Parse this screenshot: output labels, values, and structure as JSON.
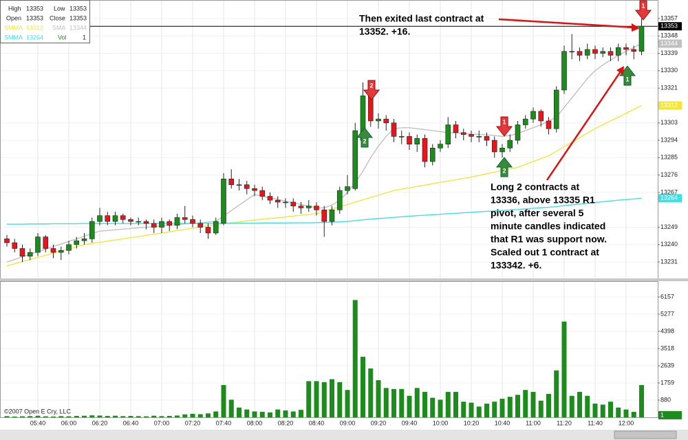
{
  "chart_data": {
    "type": "candlestick",
    "categories": [
      null,
      null,
      null,
      null,
      "05:40",
      null,
      null,
      null,
      "06:00",
      null,
      null,
      null,
      "06:20",
      null,
      null,
      null,
      "06:40",
      null,
      null,
      null,
      "07:00",
      null,
      null,
      null,
      "07:20",
      null,
      null,
      null,
      "07:40",
      null,
      null,
      null,
      "08:00",
      null,
      null,
      null,
      "08:20",
      null,
      null,
      null,
      "08:40",
      null,
      null,
      null,
      "09:00",
      null,
      null,
      null,
      "09:20",
      null,
      null,
      null,
      "09:40",
      null,
      null,
      null,
      "10:00",
      null,
      null,
      null,
      "10:20",
      null,
      null,
      null,
      "10:40",
      null,
      null,
      null,
      "11:00",
      null,
      null,
      null,
      "11:20",
      null,
      null,
      null,
      "11:40",
      null,
      null,
      null,
      "12:00",
      null,
      null
    ],
    "open": [
      13243,
      13241,
      13238,
      13234,
      13236,
      13244,
      13238,
      13236,
      13237,
      13240,
      13242,
      13243,
      13252,
      13255,
      13252,
      13255,
      13253,
      13252,
      13252,
      13251,
      13249,
      13252,
      13250,
      13254,
      13253,
      13251,
      13249,
      13246,
      13251,
      13274,
      13271,
      13271,
      13269,
      13268,
      13265,
      13263,
      13262,
      13262,
      13260,
      13259,
      13260,
      13258,
      13252,
      13258,
      13268,
      13269,
      13294,
      13318,
      13304,
      13305,
      13303,
      13296,
      13296,
      13292,
      13295,
      13283,
      13290,
      13292,
      13302,
      13298,
      13297,
      13296,
      13296,
      13294,
      13288,
      13290,
      13294,
      13302,
      13305,
      13309,
      13304,
      13300,
      13320,
      13340,
      13340,
      13338,
      13341,
      13339,
      13340,
      13338,
      13342,
      13341,
      13340
    ],
    "high": [
      13245,
      13243,
      13240,
      13238,
      13246,
      13245,
      13240,
      13239,
      13242,
      13244,
      13246,
      13254,
      13259,
      13257,
      13257,
      13256,
      13254,
      13254,
      13253,
      13253,
      13254,
      13253,
      13256,
      13260,
      13255,
      13253,
      13251,
      13254,
      13277,
      13279,
      13274,
      13273,
      13271,
      13270,
      13267,
      13265,
      13264,
      13264,
      13262,
      13263,
      13262,
      13260,
      13260,
      13270,
      13276,
      13303,
      13324,
      13320,
      13308,
      13307,
      13305,
      13299,
      13298,
      13297,
      13297,
      13292,
      13294,
      13306,
      13304,
      13300,
      13299,
      13299,
      13298,
      13296,
      13292,
      13297,
      13304,
      13307,
      13311,
      13310,
      13306,
      13322,
      13343,
      13349,
      13342,
      13344,
      13343,
      13342,
      13342,
      13344,
      13344,
      13343,
      13357
    ],
    "low": [
      13239,
      13236,
      13231,
      13232,
      13234,
      13236,
      13233,
      13232,
      13235,
      13238,
      13240,
      13241,
      13250,
      13250,
      13250,
      13251,
      13250,
      13250,
      13248,
      13246,
      13246,
      13247,
      13248,
      13251,
      13249,
      13246,
      13243,
      13245,
      13250,
      13269,
      13268,
      13266,
      13265,
      13263,
      13261,
      13259,
      13259,
      13257,
      13256,
      13257,
      13255,
      13244,
      13250,
      13256,
      13266,
      13268,
      13292,
      13301,
      13300,
      13299,
      13293,
      13292,
      13289,
      13288,
      13280,
      13281,
      13288,
      13290,
      13295,
      13294,
      13293,
      13293,
      13291,
      13285,
      13285,
      13288,
      13292,
      13300,
      13303,
      13301,
      13297,
      13298,
      13318,
      13336,
      13335,
      13336,
      13336,
      13337,
      13335,
      13335,
      13338,
      13336,
      13338
    ],
    "close": [
      13241,
      13238,
      13234,
      13236,
      13244,
      13238,
      13236,
      13237,
      13240,
      13242,
      13243,
      13252,
      13255,
      13252,
      13255,
      13253,
      13252,
      13252,
      13251,
      13249,
      13252,
      13250,
      13254,
      13253,
      13251,
      13249,
      13246,
      13252,
      13274,
      13271,
      13271,
      13269,
      13268,
      13265,
      13263,
      13262,
      13262,
      13260,
      13259,
      13260,
      13258,
      13252,
      13258,
      13268,
      13270,
      13299,
      13317,
      13304,
      13305,
      13303,
      13296,
      13296,
      13292,
      13295,
      13283,
      13290,
      13292,
      13302,
      13298,
      13297,
      13296,
      13296,
      13294,
      13288,
      13290,
      13294,
      13302,
      13305,
      13309,
      13304,
      13300,
      13320,
      13340,
      13340,
      13338,
      13341,
      13339,
      13340,
      13338,
      13342,
      13341,
      13340,
      13353
    ],
    "volume": [
      60,
      40,
      50,
      60,
      80,
      50,
      40,
      60,
      50,
      70,
      80,
      100,
      90,
      70,
      80,
      60,
      70,
      60,
      50,
      80,
      60,
      70,
      90,
      150,
      180,
      160,
      200,
      300,
      1650,
      900,
      500,
      400,
      300,
      280,
      250,
      400,
      350,
      300,
      380,
      1850,
      1850,
      1800,
      1950,
      1800,
      1400,
      6000,
      3100,
      2500,
      1900,
      1500,
      1450,
      1450,
      1100,
      1500,
      1300,
      1000,
      900,
      1300,
      1300,
      800,
      750,
      550,
      700,
      800,
      950,
      1050,
      1150,
      1400,
      1300,
      850,
      1200,
      2400,
      4900,
      1100,
      1300,
      1100,
      700,
      650,
      800,
      500,
      400,
      280,
      1650
    ],
    "series": [
      {
        "name": "SMMA",
        "color": "#f2e63a",
        "values": [
          13229,
          13230.1,
          13231.2,
          13232.3,
          13233.4,
          13234.5,
          13235.6,
          13236.7,
          13237.8,
          13238.9,
          13240,
          13240.6,
          13241.2,
          13241.8,
          13242.4,
          13243,
          13243.6,
          13244.2,
          13244.8,
          13245.4,
          13246,
          13246.6,
          13247.3,
          13247.9,
          13248.5,
          13249.1,
          13249.8,
          13250.4,
          13251,
          13251.4,
          13251.8,
          13252.3,
          13252.7,
          13253.1,
          13253.5,
          13253.9,
          13254.3,
          13254.8,
          13255.2,
          13255.6,
          13256,
          13257.2,
          13258.4,
          13259.6,
          13260.8,
          13262,
          13263.2,
          13264.4,
          13265.6,
          13266.8,
          13268,
          13268.7,
          13269.4,
          13270.1,
          13270.8,
          13271.5,
          13272.2,
          13272.9,
          13273.6,
          13274.3,
          13275,
          13275.8,
          13276.7,
          13277.5,
          13278.3,
          13279.2,
          13280,
          13281.5,
          13283,
          13284.5,
          13286,
          13288.3,
          13290.7,
          13293,
          13295.3,
          13297.7,
          13300,
          13302,
          13304,
          13306,
          13308,
          13310,
          13312
        ]
      },
      {
        "name": "SMA",
        "color": "#c0c0c0",
        "values": [
          13231,
          13232.3,
          13233.7,
          13235,
          13236.3,
          13237.7,
          13239,
          13240.3,
          13241.7,
          13243,
          13244.3,
          13245.7,
          13247,
          13247.3,
          13247.7,
          13248,
          13248.3,
          13248.7,
          13249,
          13249.3,
          13249.7,
          13250,
          13250.3,
          13250.7,
          13251,
          13251.3,
          13251.7,
          13252,
          13254.8,
          13257.6,
          13260.4,
          13263.2,
          13266,
          13265.1,
          13264.3,
          13263.4,
          13262.5,
          13261.6,
          13260.8,
          13259.9,
          13259,
          13259,
          13260.5,
          13263,
          13267,
          13272,
          13278,
          13285,
          13291,
          13296,
          13300,
          13300.5,
          13300.5,
          13300,
          13299.5,
          13299,
          13298.5,
          13298,
          13297.8,
          13297.5,
          13297.2,
          13297,
          13296.8,
          13296.5,
          13296,
          13296.5,
          13297.5,
          13299,
          13300.5,
          13302,
          13304,
          13306,
          13311,
          13316,
          13321,
          13326,
          13330,
          13333,
          13335.5,
          13338,
          13340,
          13342,
          13344
        ]
      },
      {
        "name": "SMMA",
        "color": "#3ee0e6",
        "values": [
          13250.6,
          13250.6,
          13250.6,
          13250.7,
          13250.7,
          13250.7,
          13250.8,
          13250.8,
          13250.8,
          13250.8,
          13250.9,
          13250.9,
          13250.9,
          13250.9,
          13250.9,
          13250.9,
          13250.9,
          13250.9,
          13250.9,
          13250.9,
          13251,
          13251,
          13251,
          13251,
          13251,
          13251,
          13251,
          13251,
          13251,
          13251,
          13251.1,
          13251.1,
          13251.1,
          13251.2,
          13251.2,
          13251.2,
          13251.2,
          13251.3,
          13251.3,
          13251.3,
          13251.4,
          13251.5,
          13251.6,
          13251.8,
          13252,
          13252.4,
          13252.8,
          13253.2,
          13253.5,
          13253.8,
          13254.1,
          13254.4,
          13254.7,
          13255,
          13255.2,
          13255.5,
          13255.7,
          13256,
          13256.2,
          13256.5,
          13256.7,
          13257,
          13257.2,
          13257.4,
          13257.6,
          13257.9,
          13258.2,
          13258.5,
          13258.8,
          13259.1,
          13259.3,
          13259.7,
          13260.2,
          13260.6,
          13261,
          13261.4,
          13261.8,
          13262.2,
          13262.6,
          13263,
          13263.3,
          13263.6,
          13264
        ]
      }
    ],
    "ylim": [
      13222.5,
      13366.6
    ],
    "yticks": [
      13231,
      13240,
      13249,
      13267,
      13276,
      13285,
      13294,
      13303,
      13321,
      13330,
      13339,
      13348,
      13357
    ],
    "volume_ylim": [
      0,
      6930
    ],
    "volume_yticks": [
      880,
      1759,
      2639,
      3518,
      4398,
      5277,
      6157
    ],
    "grid": true,
    "up_color": "#1c8c1c",
    "down_color": "#e8161b",
    "volume_color": "#1c8c1c",
    "info_box": [
      {
        "label": "High",
        "value": 13353
      },
      {
        "label": "Low",
        "value": 13353
      },
      {
        "label": "Open",
        "value": 13353
      },
      {
        "label": "Close",
        "value": 13353
      },
      {
        "label": "Vol",
        "value": 1
      }
    ],
    "annotations": [
      {
        "lines": [
          "Then exited last contract at",
          "13352.  +16."
        ]
      },
      {
        "lines": [
          "Long 2 contracts at",
          "13336, above 13335 R1",
          "pivot, after several 5",
          "minute candles indicated",
          "that R1 was support now.",
          "Scaled out 1 contract at",
          "133342.  +6."
        ]
      }
    ],
    "signals": [
      "2",
      "2",
      "1",
      "2",
      "1",
      "1"
    ],
    "copyright": "©2007 Open E Cry, LLC"
  }
}
